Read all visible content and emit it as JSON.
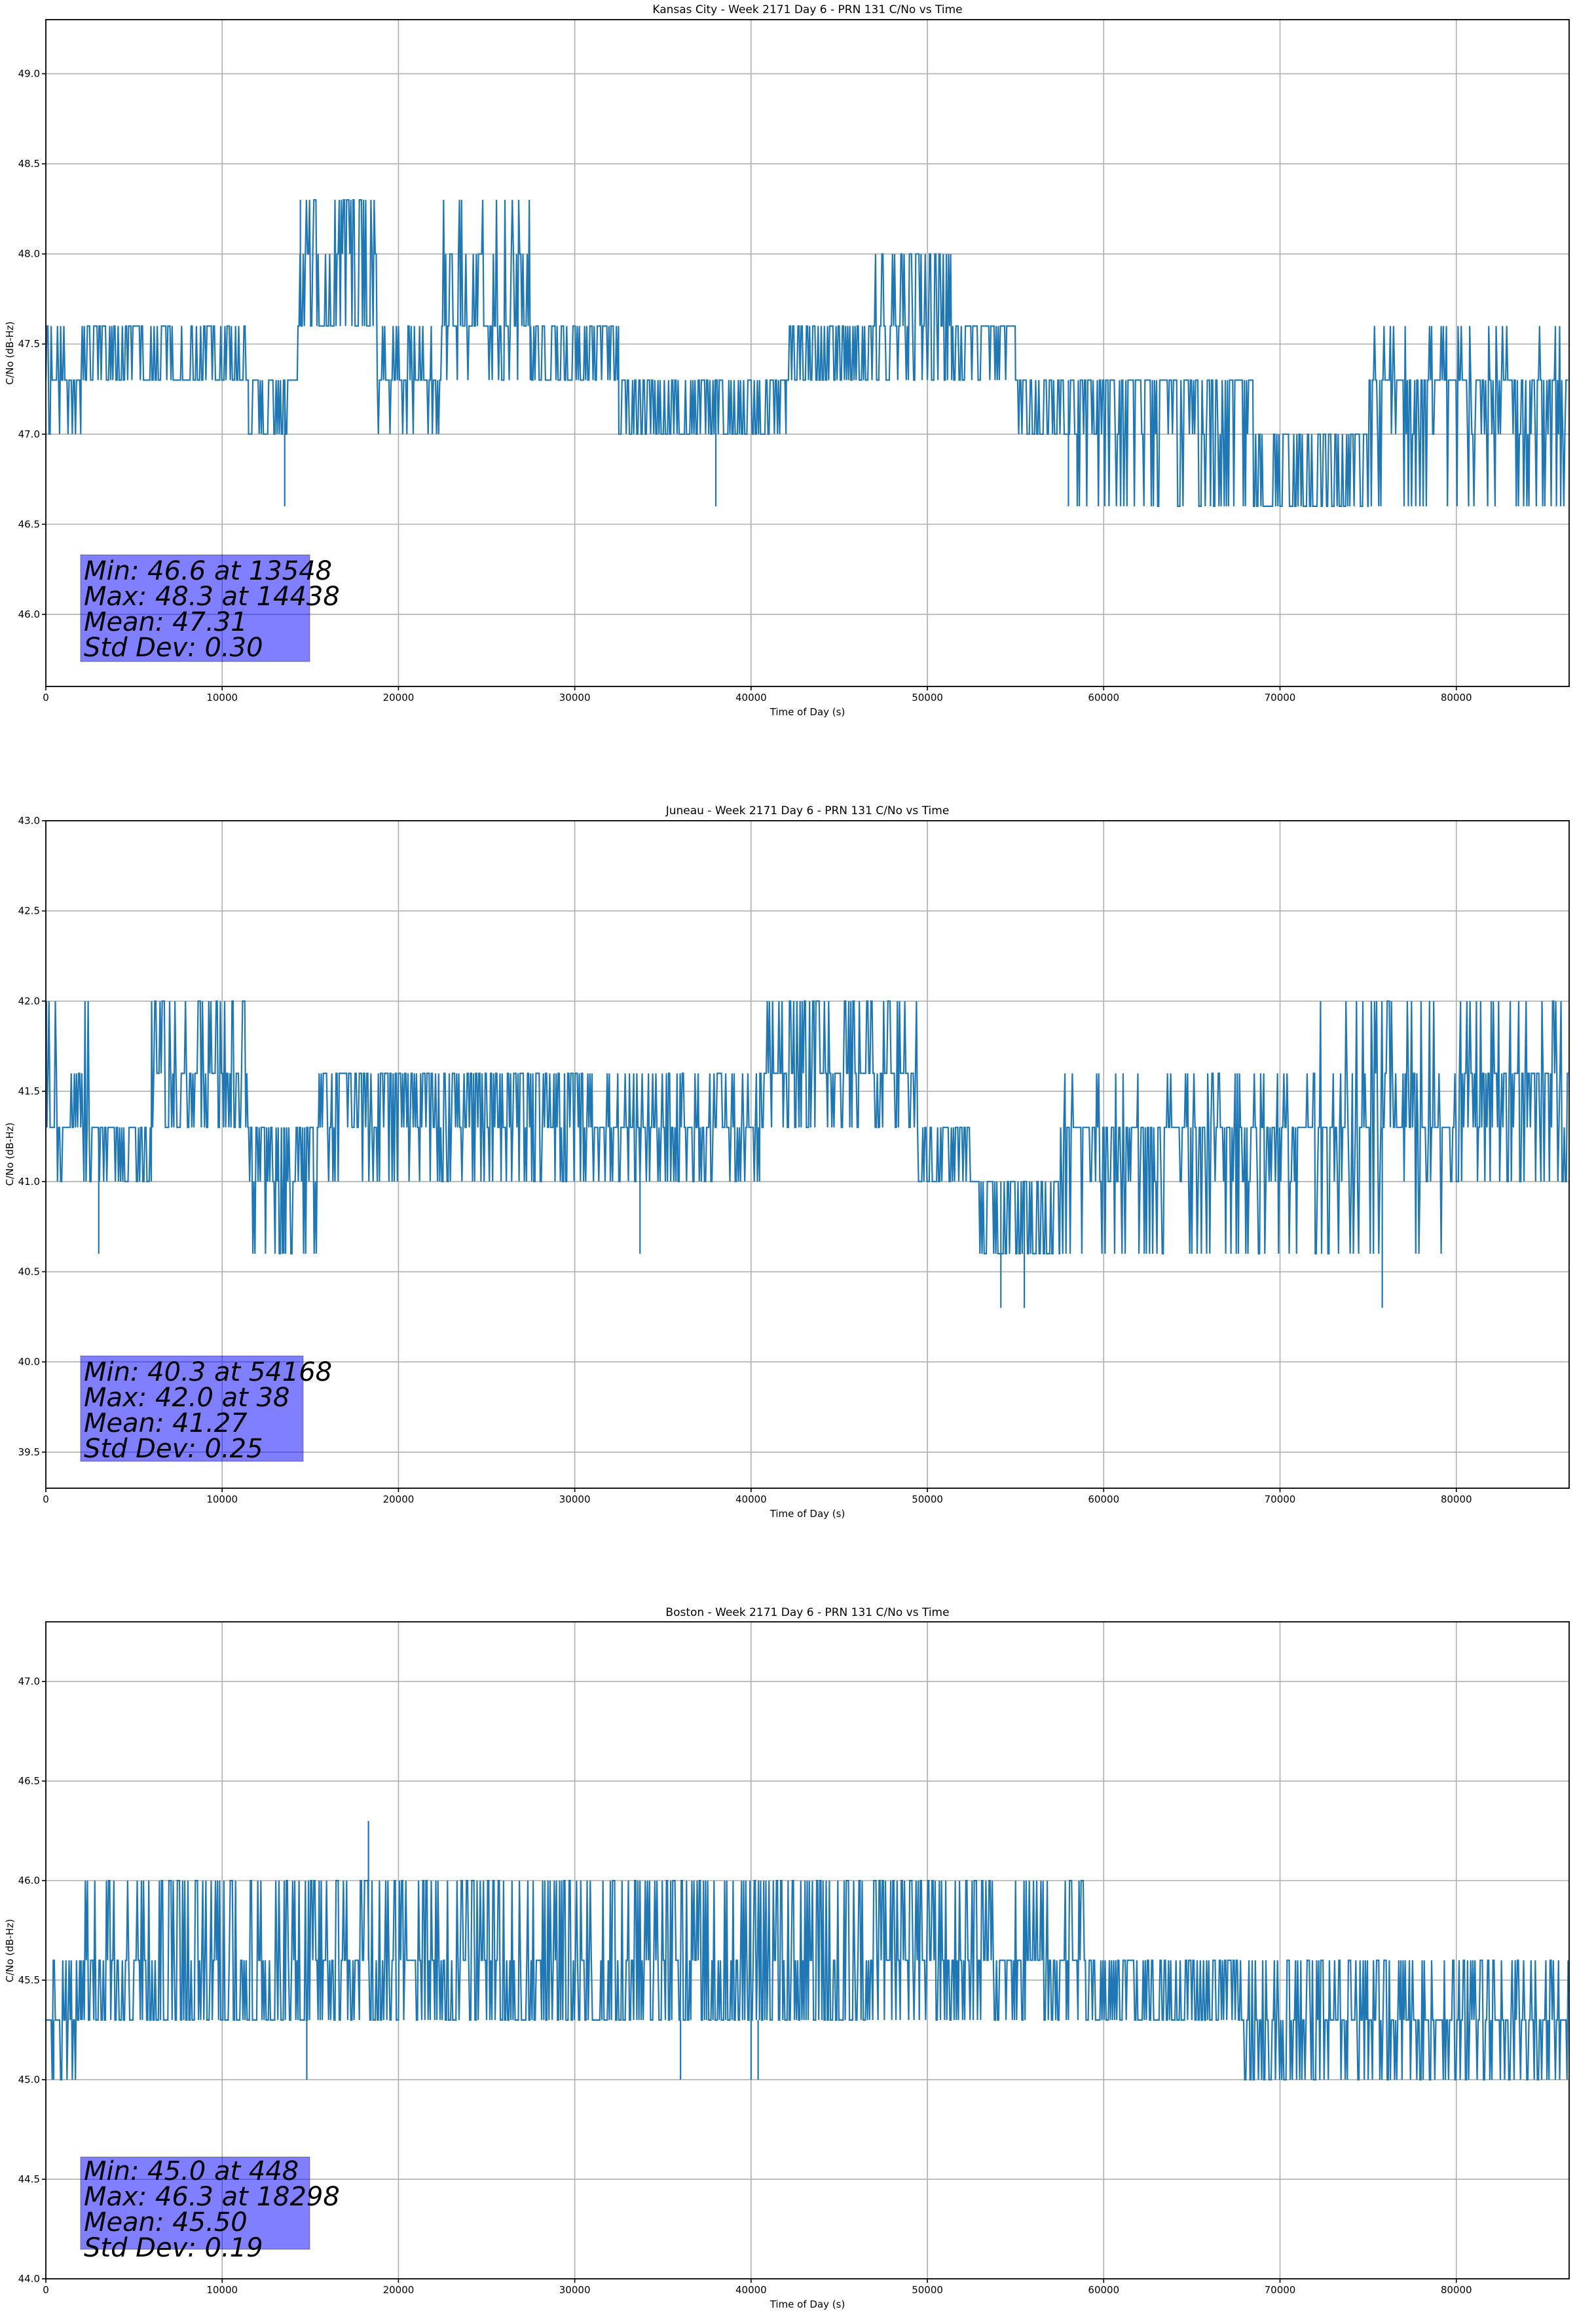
{
  "chart_data": [
    {
      "type": "line",
      "title": "Kansas City - Week 2171 Day 6 - PRN 131 C/No vs Time",
      "xlabel": "Time of Day (s)",
      "ylabel": "C/No (dB-Hz)",
      "xlim": [
        0,
        86400
      ],
      "ylim": [
        45.6,
        49.3
      ],
      "xticks": [
        0,
        10000,
        20000,
        30000,
        40000,
        50000,
        60000,
        70000,
        80000
      ],
      "xtick_labels": [
        "0",
        "10000",
        "20000",
        "30000",
        "40000",
        "50000",
        "60000",
        "70000",
        "80000"
      ],
      "yticks": [
        46.0,
        46.5,
        47.0,
        47.5,
        48.0,
        48.5,
        49.0
      ],
      "ytick_labels": [
        "46.0",
        "46.5",
        "47.0",
        "47.5",
        "48.0",
        "48.5",
        "49.0"
      ],
      "grid": true,
      "color": "#1f77b4",
      "series_segments": [
        {
          "t": [
            0,
            2000
          ],
          "base": 47.3,
          "levels": [
            47.0,
            47.3,
            47.6
          ],
          "density": 0.5
        },
        {
          "t": [
            2000,
            11500
          ],
          "base": 47.3,
          "levels": [
            47.3,
            47.6
          ],
          "density": 0.8
        },
        {
          "t": [
            11500,
            14300
          ],
          "base": 47.3,
          "levels": [
            47.0,
            47.3
          ],
          "density": 0.8
        },
        {
          "t": [
            14300,
            18800
          ],
          "base": 47.6,
          "levels": [
            47.6,
            48.0,
            48.3
          ],
          "density": 0.8
        },
        {
          "t": [
            18800,
            22500
          ],
          "base": 47.3,
          "levels": [
            47.0,
            47.3,
            47.6
          ],
          "density": 0.6
        },
        {
          "t": [
            22500,
            27500
          ],
          "base": 47.6,
          "levels": [
            47.3,
            47.6,
            48.0,
            48.3
          ],
          "density": 0.7
        },
        {
          "t": [
            27500,
            32500
          ],
          "base": 47.6,
          "levels": [
            47.3,
            47.6
          ],
          "density": 0.9
        },
        {
          "t": [
            32500,
            42000
          ],
          "base": 47.3,
          "levels": [
            47.0,
            47.3
          ],
          "density": 0.9
        },
        {
          "t": [
            42000,
            47000
          ],
          "base": 47.6,
          "levels": [
            47.3,
            47.6
          ],
          "density": 0.9
        },
        {
          "t": [
            47000,
            51500
          ],
          "base": 47.6,
          "levels": [
            47.3,
            47.6,
            48.0
          ],
          "density": 0.7
        },
        {
          "t": [
            51500,
            55000
          ],
          "base": 47.6,
          "levels": [
            47.3,
            47.6
          ],
          "density": 0.6
        },
        {
          "t": [
            55000,
            58500
          ],
          "base": 47.3,
          "levels": [
            47.0,
            47.3
          ],
          "density": 0.9
        },
        {
          "t": [
            58500,
            68500
          ],
          "base": 47.3,
          "levels": [
            46.6,
            47.0,
            47.3
          ],
          "density": 0.6
        },
        {
          "t": [
            68500,
            75000
          ],
          "base": 47.0,
          "levels": [
            46.6,
            47.0
          ],
          "density": 0.95
        },
        {
          "t": [
            75000,
            86400
          ],
          "base": 47.3,
          "levels": [
            46.6,
            47.0,
            47.3,
            47.6
          ],
          "density": 0.6
        }
      ],
      "spikes": [
        [
          13548,
          46.6
        ],
        [
          38000,
          46.6
        ],
        [
          58000,
          46.6
        ],
        [
          14438,
          48.3
        ]
      ],
      "stats": {
        "min": "Min: 46.6 at 13548",
        "max": "Max: 48.3 at 14438",
        "mean": "Mean: 47.31",
        "std": "Std Dev: 0.30"
      }
    },
    {
      "type": "line",
      "title": "Juneau - Week 2171 Day 6 - PRN 131 C/No vs Time",
      "xlabel": "Time of Day (s)",
      "ylabel": "C/No (dB-Hz)",
      "xlim": [
        0,
        86400
      ],
      "ylim": [
        39.3,
        43.0
      ],
      "xticks": [
        0,
        10000,
        20000,
        30000,
        40000,
        50000,
        60000,
        70000,
        80000
      ],
      "xtick_labels": [
        "0",
        "10000",
        "20000",
        "30000",
        "40000",
        "50000",
        "60000",
        "70000",
        "80000"
      ],
      "yticks": [
        39.5,
        40.0,
        40.5,
        41.0,
        41.5,
        42.0,
        42.5,
        43.0
      ],
      "ytick_labels": [
        "39.5",
        "40.0",
        "40.5",
        "41.0",
        "41.5",
        "42.0",
        "42.5",
        "43.0"
      ],
      "grid": true,
      "color": "#1f77b4",
      "series_segments": [
        {
          "t": [
            0,
            2500
          ],
          "base": 41.3,
          "levels": [
            41.0,
            41.3,
            41.6,
            42.0
          ],
          "density": 0.6
        },
        {
          "t": [
            2500,
            6000
          ],
          "base": 41.3,
          "levels": [
            41.0,
            41.3
          ],
          "density": 0.8
        },
        {
          "t": [
            6000,
            11500
          ],
          "base": 41.6,
          "levels": [
            41.3,
            41.6,
            42.0
          ],
          "density": 0.8
        },
        {
          "t": [
            11500,
            15500
          ],
          "base": 41.3,
          "levels": [
            41.0,
            41.3,
            40.6
          ],
          "density": 0.8
        },
        {
          "t": [
            15500,
            31000
          ],
          "base": 41.6,
          "levels": [
            41.0,
            41.3,
            41.6
          ],
          "density": 0.7
        },
        {
          "t": [
            31000,
            40500
          ],
          "base": 41.3,
          "levels": [
            41.0,
            41.3,
            41.6
          ],
          "density": 0.7
        },
        {
          "t": [
            40500,
            49500
          ],
          "base": 41.6,
          "levels": [
            41.3,
            41.6,
            42.0
          ],
          "density": 0.8
        },
        {
          "t": [
            49500,
            52500
          ],
          "base": 41.3,
          "levels": [
            41.0,
            41.3
          ],
          "density": 0.8
        },
        {
          "t": [
            52500,
            57500
          ],
          "base": 41.0,
          "levels": [
            40.6,
            41.0
          ],
          "density": 0.9
        },
        {
          "t": [
            57500,
            72000
          ],
          "base": 41.3,
          "levels": [
            40.6,
            41.0,
            41.3,
            41.6
          ],
          "density": 0.6
        },
        {
          "t": [
            72000,
            80000
          ],
          "base": 41.3,
          "levels": [
            40.6,
            41.0,
            41.3,
            41.6,
            42.0
          ],
          "density": 0.6
        },
        {
          "t": [
            80000,
            86400
          ],
          "base": 41.6,
          "levels": [
            41.0,
            41.3,
            41.6,
            42.0
          ],
          "density": 0.7
        }
      ],
      "spikes": [
        [
          3000,
          40.6
        ],
        [
          13500,
          40.6
        ],
        [
          33700,
          40.6
        ],
        [
          54168,
          40.3
        ],
        [
          55500,
          40.3
        ],
        [
          75800,
          40.3
        ],
        [
          38,
          42.0
        ]
      ],
      "stats": {
        "min": "Min: 40.3 at 54168",
        "max": "Max: 42.0 at 38",
        "mean": "Mean: 41.27",
        "std": "Std Dev: 0.25"
      }
    },
    {
      "type": "line",
      "title": "Boston - Week 2171 Day 6 - PRN 131 C/No vs Time",
      "xlabel": "Time of Day (s)",
      "ylabel": "C/No (dB-Hz)",
      "xlim": [
        0,
        86400
      ],
      "ylim": [
        44.0,
        47.3
      ],
      "xticks": [
        0,
        10000,
        20000,
        30000,
        40000,
        50000,
        60000,
        70000,
        80000
      ],
      "xtick_labels": [
        "0",
        "10000",
        "20000",
        "30000",
        "40000",
        "50000",
        "60000",
        "70000",
        "80000"
      ],
      "yticks": [
        44.0,
        44.5,
        45.0,
        45.5,
        46.0,
        46.5,
        47.0
      ],
      "ytick_labels": [
        "44.0",
        "44.5",
        "45.0",
        "45.5",
        "46.0",
        "46.5",
        "47.0"
      ],
      "grid": true,
      "color": "#1f77b4",
      "series_segments": [
        {
          "t": [
            0,
            2000
          ],
          "base": 45.3,
          "levels": [
            45.0,
            45.3,
            45.6
          ],
          "density": 0.6
        },
        {
          "t": [
            2000,
            15500
          ],
          "base": 45.3,
          "levels": [
            45.3,
            45.6,
            46.0
          ],
          "density": 0.8
        },
        {
          "t": [
            15500,
            22000
          ],
          "base": 45.6,
          "levels": [
            45.3,
            45.6,
            46.0
          ],
          "density": 0.8
        },
        {
          "t": [
            22000,
            46000
          ],
          "base": 45.3,
          "levels": [
            45.3,
            45.6,
            46.0
          ],
          "density": 0.8
        },
        {
          "t": [
            46000,
            59000
          ],
          "base": 45.6,
          "levels": [
            45.3,
            45.6,
            46.0
          ],
          "density": 0.8
        },
        {
          "t": [
            59000,
            68000
          ],
          "base": 45.3,
          "levels": [
            45.3,
            45.6
          ],
          "density": 0.9
        },
        {
          "t": [
            68000,
            75000
          ],
          "base": 45.3,
          "levels": [
            45.0,
            45.3,
            45.6
          ],
          "density": 0.8
        },
        {
          "t": [
            75000,
            86400
          ],
          "base": 45.3,
          "levels": [
            45.0,
            45.3,
            45.6
          ],
          "density": 0.8
        }
      ],
      "spikes": [
        [
          448,
          45.0
        ],
        [
          14800,
          45.0
        ],
        [
          36000,
          45.0
        ],
        [
          40000,
          45.0
        ],
        [
          40400,
          45.0
        ],
        [
          18298,
          46.3
        ]
      ],
      "stats": {
        "min": "Min: 45.0 at 448",
        "max": "Max: 46.3 at 18298",
        "mean": "Mean: 45.50",
        "std": "Std Dev: 0.19"
      }
    }
  ]
}
